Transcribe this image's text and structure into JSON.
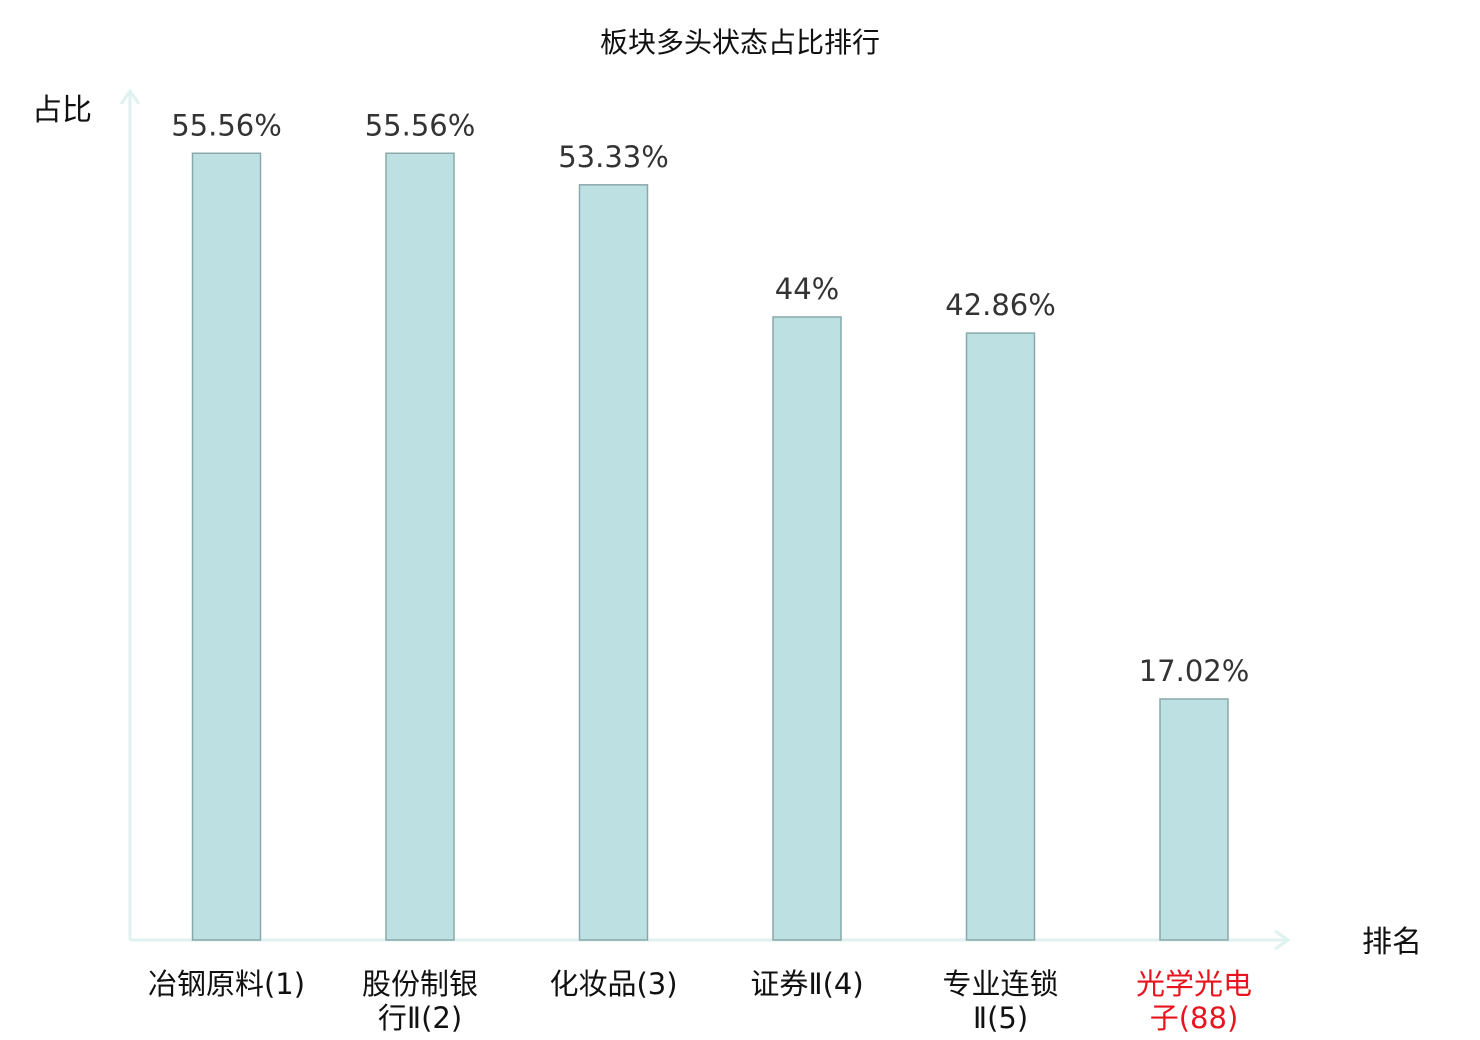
{
  "chart_data": {
    "type": "bar",
    "title": "板块多头状态占比排行",
    "ylabel": "占比",
    "xlabel": "排名",
    "ylim": [
      0,
      60
    ],
    "grid": false,
    "legend": "none",
    "categories": [
      [
        "冶钢原料(1)"
      ],
      [
        "股份制银",
        "行Ⅱ(2)"
      ],
      [
        "化妆品(3)"
      ],
      [
        "证券Ⅱ(4)"
      ],
      [
        "专业连锁",
        "Ⅱ(5)"
      ],
      [
        "光学光电",
        "子(88)"
      ]
    ],
    "values": [
      55.56,
      55.56,
      53.33,
      44,
      42.86,
      17.02
    ],
    "value_labels": [
      "55.56%",
      "55.56%",
      "53.33%",
      "44%",
      "42.86%",
      "17.02%"
    ],
    "highlight_index": 5,
    "colors": {
      "bar_fill": "#bde1e3",
      "bar_stroke": "#8aa8aa",
      "axis": "#dff2ef",
      "text": "#111111",
      "value_text": "#333333",
      "highlight": "#e8141e"
    }
  }
}
